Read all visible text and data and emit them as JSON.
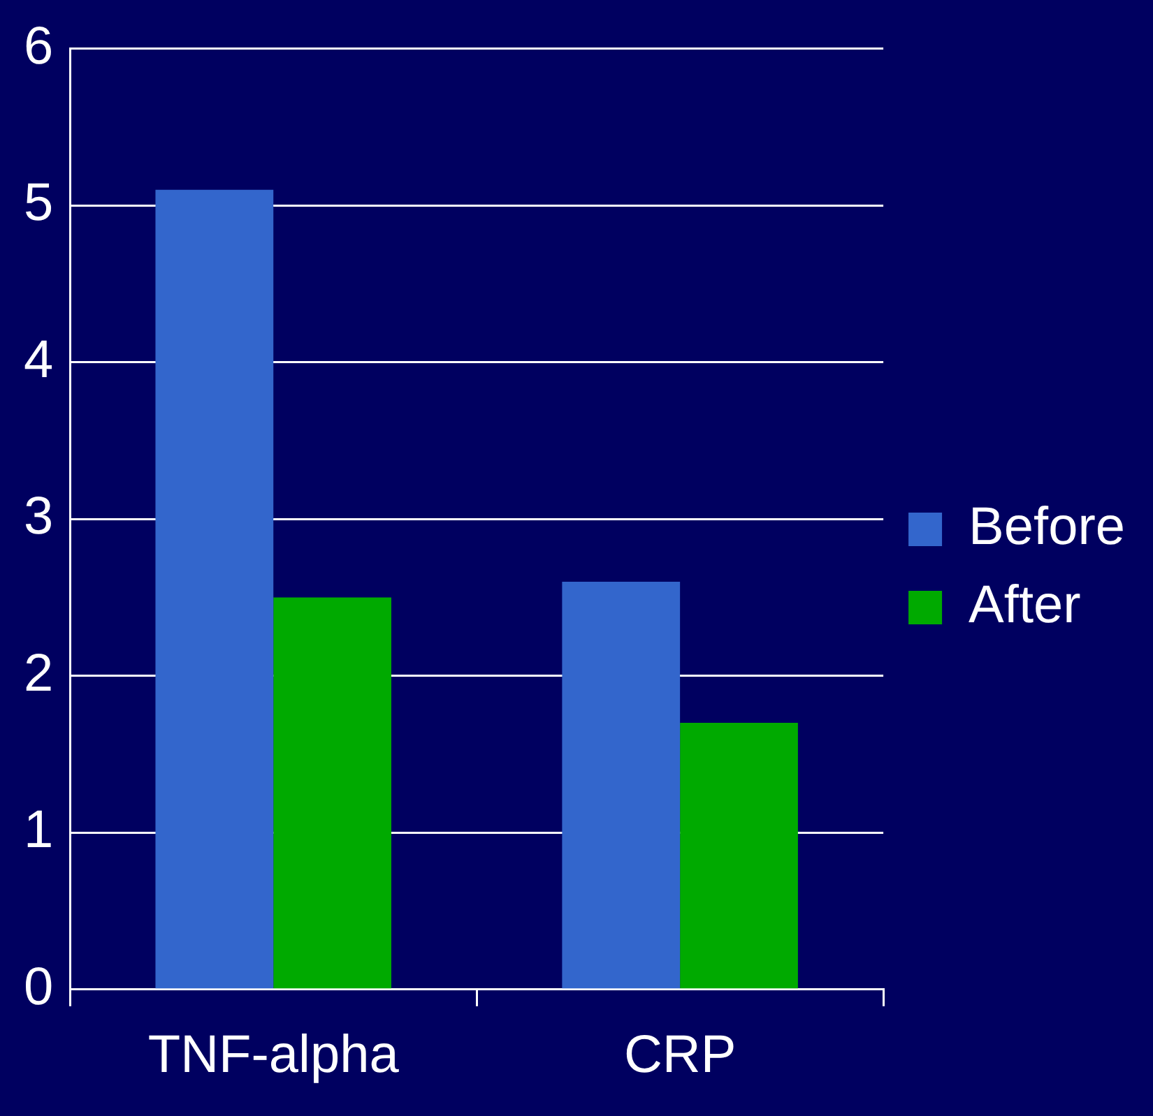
{
  "chart_data": {
    "type": "bar",
    "categories": [
      "TNF-alpha",
      "CRP"
    ],
    "series": [
      {
        "name": "Before",
        "color": "#3366cc",
        "values": [
          5.1,
          2.6
        ]
      },
      {
        "name": "After",
        "color": "#00aa00",
        "values": [
          2.5,
          1.7
        ]
      }
    ],
    "ylim": [
      0,
      6
    ],
    "yticks": [
      0,
      1,
      2,
      3,
      4,
      5,
      6
    ],
    "grid": "y",
    "legend": "right"
  }
}
